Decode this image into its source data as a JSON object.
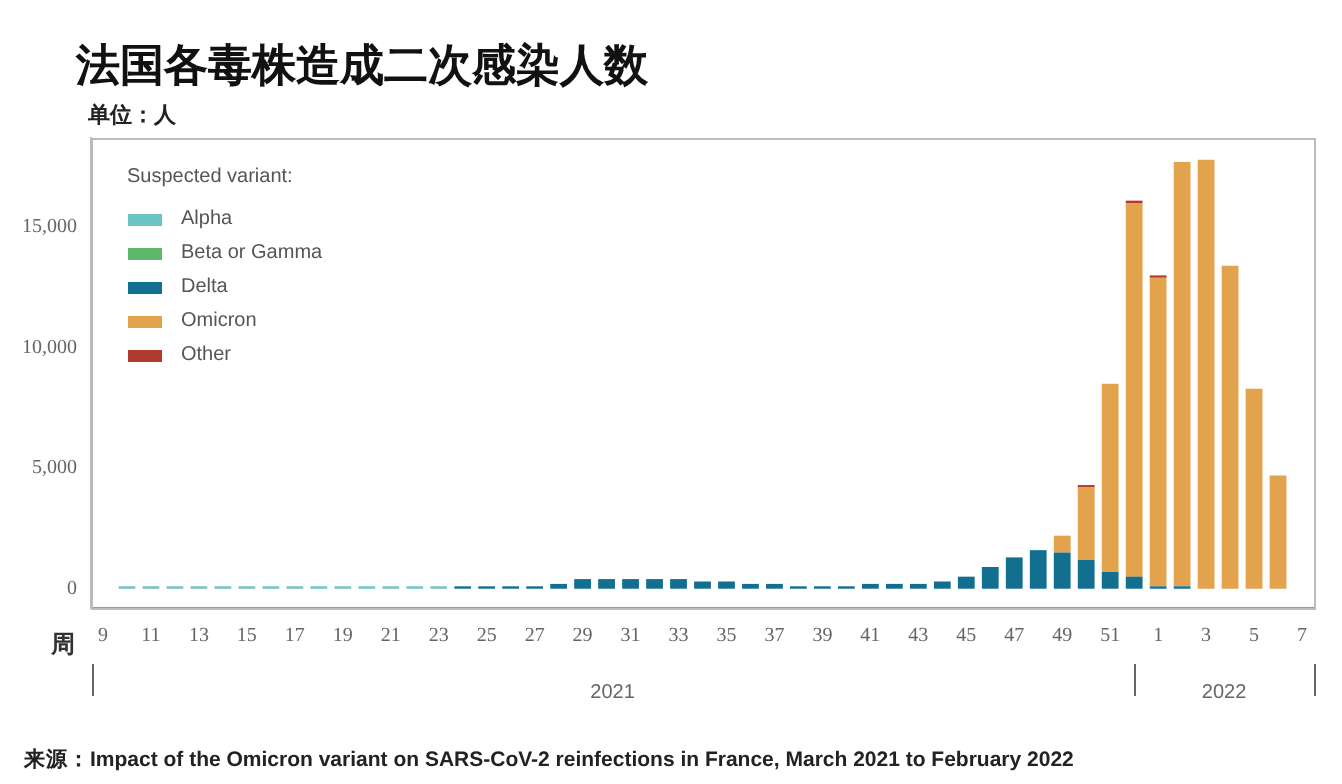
{
  "chart_data": {
    "type": "bar",
    "stacked": true,
    "title": "法国各毒株造成二次感染人数",
    "ylabel": "单位：人",
    "xlabel": "周",
    "legend_title": "Suspected variant:",
    "legend": "top left",
    "grid": false,
    "categories": [
      "9",
      null,
      "11",
      null,
      "13",
      null,
      "15",
      null,
      "17",
      null,
      "19",
      null,
      "21",
      null,
      "23",
      null,
      "25",
      null,
      "27",
      null,
      "29",
      null,
      "31",
      null,
      "33",
      null,
      "35",
      null,
      "37",
      null,
      "39",
      null,
      "41",
      null,
      "43",
      null,
      "45",
      null,
      "47",
      null,
      "49",
      null,
      "51",
      null,
      "1",
      null,
      "3",
      null,
      "5",
      null,
      "7"
    ],
    "ylim": [
      -800,
      18700
    ],
    "yticks": [
      {
        "value": 0,
        "label": "0"
      },
      {
        "value": 5000,
        "label": "5,000"
      },
      {
        "value": 10000,
        "label": "10,000"
      },
      {
        "value": 15000,
        "label": "15,000"
      }
    ],
    "series": [
      {
        "name": "Alpha",
        "color": "#6cc3c3",
        "values": [
          0,
          100,
          100,
          100,
          100,
          100,
          100,
          100,
          100,
          100,
          100,
          100,
          100,
          100,
          100,
          0,
          0,
          0,
          0,
          0,
          0,
          0,
          0,
          0,
          0,
          0,
          0,
          0,
          0,
          0,
          0,
          0,
          0,
          0,
          0,
          0,
          0,
          0,
          0,
          0,
          0,
          0,
          0,
          0,
          0,
          0,
          0,
          0,
          0,
          0,
          null
        ]
      },
      {
        "name": "Beta or Gamma",
        "color": "#5cb86a",
        "values": [
          0,
          0,
          0,
          0,
          0,
          0,
          0,
          0,
          0,
          0,
          0,
          0,
          0,
          0,
          0,
          0,
          0,
          0,
          0,
          0,
          0,
          0,
          0,
          0,
          0,
          0,
          0,
          0,
          0,
          0,
          0,
          0,
          0,
          0,
          0,
          0,
          0,
          0,
          0,
          0,
          0,
          0,
          0,
          0,
          0,
          0,
          0,
          0,
          0,
          0,
          null
        ]
      },
      {
        "name": "Delta",
        "color": "#136f8f",
        "values": [
          0,
          0,
          0,
          0,
          0,
          0,
          0,
          0,
          0,
          0,
          0,
          0,
          0,
          0,
          0,
          100,
          100,
          100,
          100,
          200,
          400,
          400,
          400,
          400,
          400,
          300,
          300,
          200,
          200,
          100,
          100,
          100,
          200,
          200,
          200,
          300,
          500,
          900,
          1300,
          1600,
          1500,
          1200,
          700,
          500,
          100,
          100,
          0,
          0,
          0,
          0,
          null
        ]
      },
      {
        "name": "Omicron",
        "color": "#e3a24c",
        "values": [
          0,
          0,
          0,
          0,
          0,
          0,
          0,
          0,
          0,
          0,
          0,
          0,
          0,
          0,
          0,
          0,
          0,
          0,
          0,
          0,
          0,
          0,
          0,
          0,
          0,
          0,
          0,
          0,
          0,
          0,
          0,
          0,
          0,
          0,
          0,
          0,
          0,
          0,
          0,
          0,
          700,
          3000,
          7800,
          15500,
          12800,
          17600,
          17800,
          13400,
          8300,
          4700,
          null
        ]
      },
      {
        "name": "Other",
        "color": "#b03a2e",
        "values": [
          0,
          0,
          0,
          0,
          0,
          0,
          0,
          0,
          0,
          0,
          0,
          0,
          0,
          0,
          0,
          0,
          0,
          0,
          0,
          0,
          0,
          0,
          0,
          0,
          0,
          0,
          0,
          0,
          0,
          0,
          0,
          0,
          0,
          0,
          0,
          0,
          0,
          0,
          0,
          0,
          0,
          100,
          0,
          100,
          100,
          0,
          0,
          0,
          0,
          0,
          null
        ]
      }
    ],
    "annotations": [
      "2021",
      "2022",
      "来源：Impact of the Omicron variant on SARS-CoV-2 reinfections in France, March 2021 to February 2022"
    ]
  }
}
